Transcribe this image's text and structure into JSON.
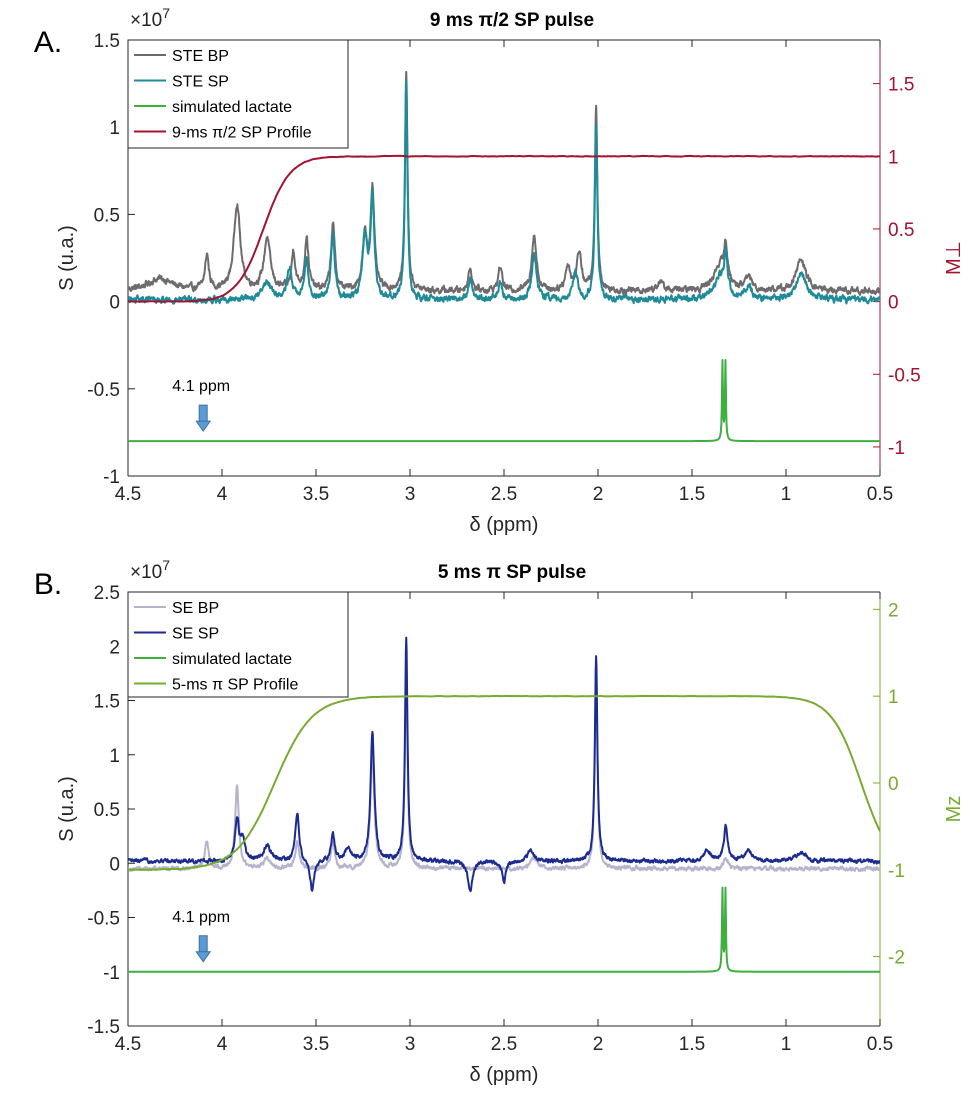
{
  "chart_data": [
    {
      "panel_label": "A.",
      "type": "line",
      "title": "9 ms π/2 SP pulse",
      "xlabel": "δ (ppm)",
      "ylabel": "S (u.a.)",
      "y2label": "M⊥",
      "multiplier": "×10",
      "multiplier_exp": "7",
      "xlim": [
        4.5,
        0.5
      ],
      "ylim": [
        -1,
        1.5
      ],
      "y2lim": [
        -1.2,
        1.8
      ],
      "xticks": [
        "4.5",
        "4",
        "3.5",
        "3",
        "2.5",
        "2",
        "1.5",
        "1",
        "0.5"
      ],
      "yticks": [
        "-1",
        "-0.5",
        "0",
        "0.5",
        "1",
        "1.5"
      ],
      "y2ticks": [
        "-1",
        "-0.5",
        "0",
        "0.5",
        "1",
        "1.5"
      ],
      "right_axis_color": "#a2142f",
      "annotation": {
        "text": "4.1 ppm",
        "x": 4.1
      },
      "series": [
        {
          "name": "STE BP",
          "color": "#6e6a6e",
          "kind": "spectrum",
          "baseline": 0.06,
          "peaks": [
            [
              4.33,
              0.07,
              0.08
            ],
            [
              4.08,
              0.2,
              0.012
            ],
            [
              3.92,
              0.5,
              0.02
            ],
            [
              3.76,
              0.3,
              0.02
            ],
            [
              3.62,
              0.22,
              0.012
            ],
            [
              3.55,
              0.3,
              0.012
            ],
            [
              3.41,
              0.38,
              0.012
            ],
            [
              3.24,
              0.3,
              0.015
            ],
            [
              3.2,
              0.58,
              0.012
            ],
            [
              3.02,
              1.25,
              0.008
            ],
            [
              2.68,
              0.13,
              0.012
            ],
            [
              2.52,
              0.14,
              0.012
            ],
            [
              2.34,
              0.32,
              0.015
            ],
            [
              2.16,
              0.14,
              0.015
            ],
            [
              2.1,
              0.22,
              0.015
            ],
            [
              2.01,
              1.05,
              0.008
            ],
            [
              1.67,
              0.05,
              0.02
            ],
            [
              1.35,
              0.15,
              0.04
            ],
            [
              1.32,
              0.2,
              0.01
            ],
            [
              1.2,
              0.08,
              0.02
            ],
            [
              0.92,
              0.18,
              0.03
            ]
          ]
        },
        {
          "name": "STE SP",
          "color": "#1f8a98",
          "kind": "spectrum",
          "baseline": 0.01,
          "peaks": [
            [
              3.76,
              0.1,
              0.03
            ],
            [
              3.64,
              0.18,
              0.015
            ],
            [
              3.55,
              0.22,
              0.012
            ],
            [
              3.41,
              0.38,
              0.012
            ],
            [
              3.24,
              0.35,
              0.015
            ],
            [
              3.2,
              0.58,
              0.012
            ],
            [
              3.02,
              1.25,
              0.008
            ],
            [
              2.68,
              0.12,
              0.012
            ],
            [
              2.52,
              0.1,
              0.012
            ],
            [
              2.34,
              0.26,
              0.015
            ],
            [
              2.12,
              0.17,
              0.015
            ],
            [
              2.01,
              1.0,
              0.008
            ],
            [
              1.35,
              0.12,
              0.04
            ],
            [
              1.32,
              0.22,
              0.01
            ],
            [
              1.2,
              0.07,
              0.02
            ],
            [
              0.92,
              0.16,
              0.03
            ]
          ]
        },
        {
          "name": "simulated lactate",
          "color": "#3fb03f",
          "kind": "lactate",
          "baseline": -0.8,
          "peaks": [
            [
              1.338,
              0.45,
              0.003
            ],
            [
              1.322,
              0.45,
              0.003
            ]
          ]
        },
        {
          "name": "9-ms π/2 SP Profile",
          "color": "#a2142f",
          "kind": "profile",
          "axis": "right",
          "low": 0.0,
          "high": 1.0,
          "center": 3.78,
          "width": 0.07
        }
      ]
    },
    {
      "panel_label": "B.",
      "type": "line",
      "title": "5 ms π SP pulse",
      "xlabel": "δ (ppm)",
      "ylabel": "S (u.a.)",
      "y2label": "Mz",
      "multiplier": "×10",
      "multiplier_exp": "7",
      "xlim": [
        4.5,
        0.5
      ],
      "ylim": [
        -1.5,
        2.5
      ],
      "y2lim": [
        -2.8,
        2.2
      ],
      "xticks": [
        "4.5",
        "4",
        "3.5",
        "3",
        "2.5",
        "2",
        "1.5",
        "1",
        "0.5"
      ],
      "yticks": [
        "-1.5",
        "-1",
        "-0.5",
        "0",
        "0.5",
        "1",
        "1.5",
        "2",
        "2.5"
      ],
      "y2ticks": [
        "-2",
        "-1",
        "0",
        "1",
        "2"
      ],
      "right_axis_color": "#77ac30",
      "annotation": {
        "text": "4.1 ppm",
        "x": 4.1
      },
      "series": [
        {
          "name": "SE BP",
          "color": "#b4b4cd",
          "kind": "spectrum",
          "baseline": -0.05,
          "peaks": [
            [
              4.08,
              0.25,
              0.012
            ],
            [
              3.92,
              0.75,
              0.012
            ],
            [
              3.76,
              0.1,
              0.02
            ],
            [
              3.6,
              0.25,
              0.012
            ],
            [
              3.41,
              0.25,
              0.012
            ],
            [
              3.2,
              1.1,
              0.012
            ],
            [
              3.02,
              1.9,
              0.008
            ],
            [
              2.34,
              0.1,
              0.02
            ],
            [
              2.01,
              1.9,
              0.008
            ],
            [
              1.32,
              0.1,
              0.015
            ]
          ]
        },
        {
          "name": "SE SP",
          "color": "#1c2b8f",
          "kind": "spectrum",
          "baseline": 0.02,
          "peaks": [
            [
              3.92,
              0.4,
              0.012
            ],
            [
              3.89,
              0.2,
              0.012
            ],
            [
              3.76,
              0.15,
              0.02
            ],
            [
              3.6,
              0.45,
              0.012
            ],
            [
              3.52,
              -0.3,
              0.012
            ],
            [
              3.41,
              0.25,
              0.012
            ],
            [
              3.33,
              0.12,
              0.015
            ],
            [
              3.2,
              1.18,
              0.012
            ],
            [
              3.02,
              2.05,
              0.008
            ],
            [
              2.68,
              -0.28,
              0.015
            ],
            [
              2.5,
              -0.2,
              0.012
            ],
            [
              2.36,
              0.12,
              0.015
            ],
            [
              2.01,
              1.9,
              0.008
            ],
            [
              1.42,
              0.1,
              0.02
            ],
            [
              1.32,
              0.32,
              0.012
            ],
            [
              1.2,
              0.1,
              0.02
            ],
            [
              0.92,
              0.08,
              0.03
            ]
          ]
        },
        {
          "name": "simulated lactate",
          "color": "#3fb03f",
          "kind": "lactate",
          "baseline": -1.0,
          "peaks": [
            [
              1.338,
              0.75,
              0.003
            ],
            [
              1.322,
              0.75,
              0.003
            ]
          ]
        },
        {
          "name": "5-ms π SP Profile",
          "color": "#77ac30",
          "kind": "profile",
          "axis": "right",
          "low": -1.0,
          "high": 1.0,
          "center": 3.72,
          "width": 0.1,
          "center2": 0.6,
          "width2": 0.08
        }
      ]
    }
  ]
}
